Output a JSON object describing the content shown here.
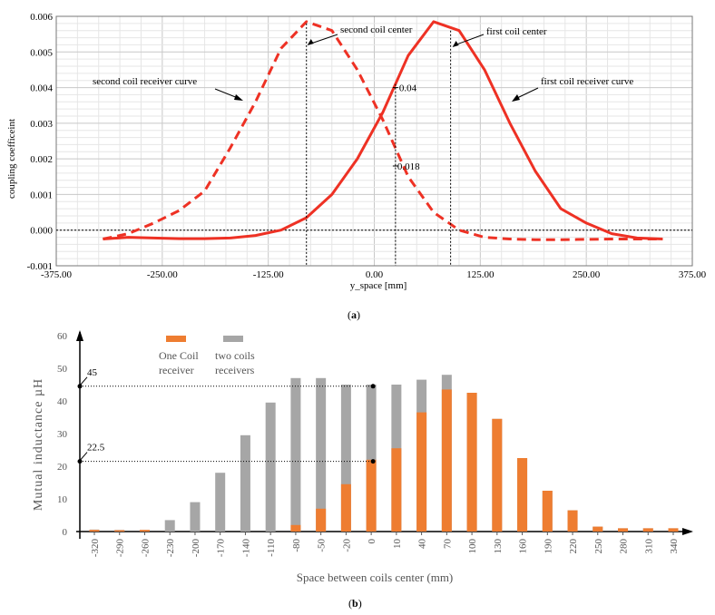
{
  "chart_data": [
    {
      "type": "line",
      "ylabel": "coupling coefficeint",
      "xlabel": "y_space [mm]",
      "xlim": [
        -375,
        375
      ],
      "ylim": [
        -0.001,
        0.006
      ],
      "x_ticks": [
        "-375.00",
        "-250.00",
        "-125.00",
        "0.00",
        "125.00",
        "250.00",
        "375.00"
      ],
      "y_ticks": [
        "-0.001",
        "0.000",
        "0.001",
        "0.002",
        "0.003",
        "0.004",
        "0.005",
        "0.006"
      ],
      "grid": true,
      "series": [
        {
          "name": "first coil receiver curve",
          "style": "solid",
          "color": "#ee3124",
          "points": [
            [
              -320,
              -0.00025
            ],
            [
              -290,
              -0.0002
            ],
            [
              -260,
              -0.00022
            ],
            [
              -230,
              -0.00024
            ],
            [
              -200,
              -0.00024
            ],
            [
              -170,
              -0.00022
            ],
            [
              -140,
              -0.00015
            ],
            [
              -110,
              0.0
            ],
            [
              -80,
              0.00035
            ],
            [
              -50,
              0.001
            ],
            [
              -20,
              0.002
            ],
            [
              10,
              0.0033
            ],
            [
              40,
              0.0049
            ],
            [
              70,
              0.00585
            ],
            [
              100,
              0.0056
            ],
            [
              130,
              0.0045
            ],
            [
              160,
              0.003
            ],
            [
              190,
              0.00165
            ],
            [
              220,
              0.0006
            ],
            [
              250,
              0.0002
            ],
            [
              280,
              -0.0001
            ],
            [
              310,
              -0.00022
            ],
            [
              340,
              -0.00025
            ]
          ]
        },
        {
          "name": "second coil receiver curve",
          "style": "dashed",
          "color": "#ee3124",
          "points": [
            [
              -320,
              -0.00025
            ],
            [
              -290,
              -0.0001
            ],
            [
              -260,
              0.0002
            ],
            [
              -230,
              0.00055
            ],
            [
              -200,
              0.0011
            ],
            [
              -170,
              0.0023
            ],
            [
              -140,
              0.0036
            ],
            [
              -110,
              0.0051
            ],
            [
              -80,
              0.00585
            ],
            [
              -50,
              0.0056
            ],
            [
              -20,
              0.0045
            ],
            [
              10,
              0.0031
            ],
            [
              40,
              0.0015
            ],
            [
              70,
              0.0005
            ],
            [
              100,
              0.0
            ],
            [
              130,
              -0.0002
            ],
            [
              160,
              -0.00025
            ],
            [
              190,
              -0.00027
            ],
            [
              220,
              -0.00027
            ],
            [
              250,
              -0.00026
            ],
            [
              280,
              -0.00025
            ],
            [
              310,
              -0.00025
            ],
            [
              340,
              -0.00025
            ]
          ]
        }
      ],
      "annotations": [
        {
          "text": "second coil center",
          "x": -80
        },
        {
          "text": "first coil center",
          "x": 90
        },
        {
          "text": "second coil receiver curve"
        },
        {
          "text": "first coil receiver curve"
        },
        {
          "text": "0.04",
          "x": 25,
          "y": 0.004
        },
        {
          "text": "0.018",
          "x": 25,
          "y": 0.0018
        }
      ],
      "panel_label": "a"
    },
    {
      "type": "bar",
      "ylabel": "Mutual inductance µH",
      "xlabel": "Space between coils center (mm)",
      "ylim": [
        0,
        60
      ],
      "y_ticks": [
        "0",
        "10",
        "20",
        "30",
        "40",
        "50",
        "60"
      ],
      "categories": [
        "-320",
        "-290",
        "-260",
        "-230",
        "-200",
        "-170",
        "-140",
        "-110",
        "-80",
        "-50",
        "-20",
        "0",
        "10",
        "40",
        "70",
        "100",
        "130",
        "160",
        "190",
        "220",
        "250",
        "280",
        "310",
        "340"
      ],
      "series": [
        {
          "name": "One Coil receiver",
          "color": "#ee7d31",
          "values": [
            0.5,
            0.4,
            0.5,
            0,
            0,
            0,
            0,
            0,
            2,
            7,
            14.5,
            22,
            25.5,
            36.5,
            43.5,
            42.5,
            34.5,
            22.5,
            12.5,
            6.5,
            1.5,
            1,
            1,
            1
          ]
        },
        {
          "name": "two coils receivers",
          "color": "#a6a6a6",
          "values": [
            0.6,
            0.5,
            0.5,
            3.5,
            9,
            18,
            29.5,
            39.5,
            47,
            47,
            45,
            45,
            45,
            46.5,
            48,
            42.5,
            34.5,
            22.5,
            12.5,
            6.5,
            1.5,
            1,
            1,
            1
          ]
        }
      ],
      "reference_lines": [
        {
          "label": "45",
          "y": 44.5
        },
        {
          "label": "22.5",
          "y": 21.5
        }
      ],
      "panel_label": "b"
    }
  ]
}
